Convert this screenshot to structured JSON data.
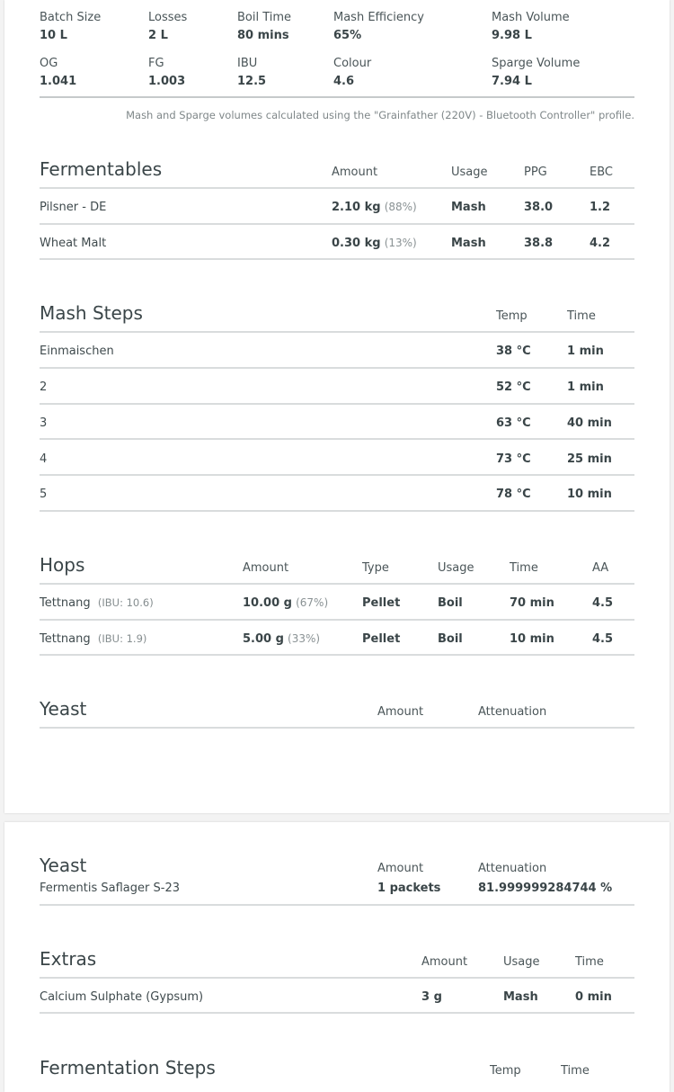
{
  "stats": {
    "batch_size": {
      "label": "Batch Size",
      "value": "10 L"
    },
    "losses": {
      "label": "Losses",
      "value": "2 L"
    },
    "boil_time": {
      "label": "Boil Time",
      "value": "80 mins"
    },
    "mash_efficiency": {
      "label": "Mash Efficiency",
      "value": "65%"
    },
    "mash_volume": {
      "label": "Mash Volume",
      "value": "9.98 L"
    },
    "og": {
      "label": "OG",
      "value": "1.041"
    },
    "fg": {
      "label": "FG",
      "value": "1.003"
    },
    "ibu": {
      "label": "IBU",
      "value": "12.5"
    },
    "colour": {
      "label": "Colour",
      "value": "4.6"
    },
    "sparge_volume": {
      "label": "Sparge Volume",
      "value": "7.94 L"
    }
  },
  "note": "Mash and Sparge volumes calculated using the \"Grainfather (220V) - Bluetooth Controller\" profile.",
  "fermentables": {
    "title": "Fermentables",
    "headers": {
      "amount": "Amount",
      "usage": "Usage",
      "ppg": "PPG",
      "ebc": "EBC"
    },
    "rows": [
      {
        "name": "Pilsner - DE",
        "amount": "2.10 kg",
        "pct": "(88%)",
        "usage": "Mash",
        "ppg": "38.0",
        "ebc": "1.2"
      },
      {
        "name": "Wheat Malt",
        "amount": "0.30 kg",
        "pct": "(13%)",
        "usage": "Mash",
        "ppg": "38.8",
        "ebc": "4.2"
      }
    ]
  },
  "mash_steps": {
    "title": "Mash Steps",
    "headers": {
      "temp": "Temp",
      "time": "Time"
    },
    "rows": [
      {
        "name": "Einmaischen",
        "temp": "38 °C",
        "time": "1 min"
      },
      {
        "name": "2",
        "temp": "52 °C",
        "time": "1 min"
      },
      {
        "name": "3",
        "temp": "63 °C",
        "time": "40 min"
      },
      {
        "name": "4",
        "temp": "73 °C",
        "time": "25 min"
      },
      {
        "name": "5",
        "temp": "78 °C",
        "time": "10 min"
      }
    ]
  },
  "hops": {
    "title": "Hops",
    "headers": {
      "amount": "Amount",
      "type": "Type",
      "usage": "Usage",
      "time": "Time",
      "aa": "AA"
    },
    "rows": [
      {
        "name": "Tettnang",
        "ibu": "(IBU: 10.6)",
        "amount": "10.00 g",
        "pct": "(67%)",
        "type": "Pellet",
        "usage": "Boil",
        "time": "70 min",
        "aa": "4.5"
      },
      {
        "name": "Tettnang",
        "ibu": "(IBU: 1.9)",
        "amount": "5.00 g",
        "pct": "(33%)",
        "type": "Pellet",
        "usage": "Boil",
        "time": "10 min",
        "aa": "4.5"
      }
    ]
  },
  "yeast_top": {
    "title": "Yeast",
    "headers": {
      "amount": "Amount",
      "attenuation": "Attenuation"
    }
  },
  "yeast": {
    "title": "Yeast",
    "headers": {
      "amount": "Amount",
      "attenuation": "Attenuation"
    },
    "name": "Fermentis Saflager S-23",
    "amount": "1 packets",
    "attenuation": "81.999999284744 %"
  },
  "extras": {
    "title": "Extras",
    "headers": {
      "amount": "Amount",
      "usage": "Usage",
      "time": "Time"
    },
    "rows": [
      {
        "name": "Calcium Sulphate (Gypsum)",
        "amount": "3 g",
        "usage": "Mash",
        "time": "0 min"
      }
    ]
  },
  "fermentation_steps": {
    "title": "Fermentation Steps",
    "headers": {
      "temp": "Temp",
      "time": "Time"
    }
  }
}
